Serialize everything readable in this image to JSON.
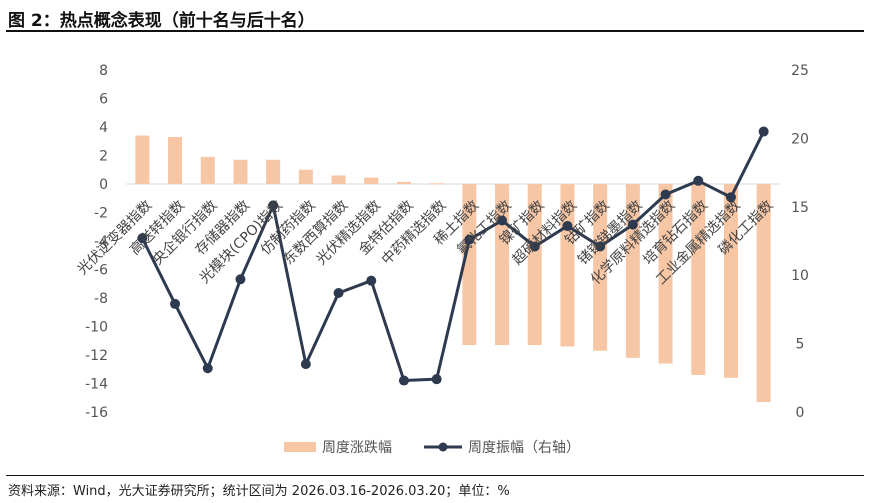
{
  "header": {
    "title": "图 2：热点概念表现（前十名与后十名）"
  },
  "footer": {
    "source": "资料来源：Wind，光大证券研究所；统计区间为 2026.03.16-2026.03.20；单位：%"
  },
  "colors": {
    "bar": "#F7C6A5",
    "line": "#2E3A4F",
    "axis": "#D9D9D9"
  },
  "chart_data": {
    "type": "bar+line",
    "title": "热点概念表现（前十名与后十名）",
    "categories": [
      "光伏逆变器指数",
      "高送转指数",
      "央企银行指数",
      "存储器指数",
      "光模块(CPO)指数",
      "仿制药指数",
      "东数西算指数",
      "光伏精选指数",
      "金特估指数",
      "中药精选指数",
      "稀土指数",
      "氟化工指数",
      "镍矿指数",
      "超硬材料指数",
      "钴矿指数",
      "锗镓锑墨指数",
      "化学原料精选指数",
      "培育钻石指数",
      "工业金属精选指数",
      "磷化工指数"
    ],
    "series": [
      {
        "name": "周度涨跌幅",
        "axis": "left",
        "type": "bar",
        "values": [
          3.4,
          3.3,
          1.9,
          1.7,
          1.7,
          1.0,
          0.6,
          0.45,
          0.15,
          0.05,
          -11.3,
          -11.3,
          -11.3,
          -11.4,
          -11.7,
          -12.2,
          -12.6,
          -13.4,
          -13.6,
          -15.3
        ]
      },
      {
        "name": "周度振幅（右轴）",
        "axis": "right",
        "type": "line",
        "values": [
          12.7,
          7.9,
          3.2,
          9.7,
          15.1,
          3.5,
          8.7,
          9.6,
          2.3,
          2.4,
          12.6,
          14.0,
          12.1,
          13.6,
          12.1,
          13.7,
          15.9,
          16.9,
          15.7,
          20.5
        ]
      }
    ],
    "yleft": {
      "min": -16,
      "max": 8,
      "ticks": [
        "8",
        "6",
        "4",
        "2",
        "0",
        "-2",
        "-4",
        "-6",
        "-8",
        "-10",
        "-12",
        "-14",
        "-16"
      ]
    },
    "yright": {
      "min": 0,
      "max": 25,
      "ticks": [
        "25",
        "20",
        "15",
        "10",
        "5",
        "0"
      ]
    },
    "legend": {
      "position": "bottom",
      "bar_label": "周度涨跌幅",
      "line_label": "周度振幅（右轴）"
    }
  }
}
